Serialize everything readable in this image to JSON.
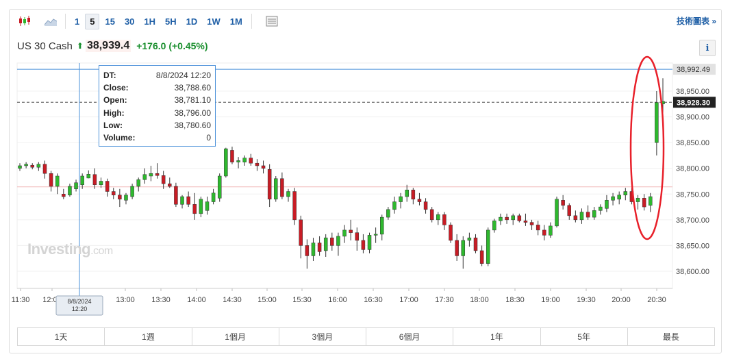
{
  "toolbar": {
    "intervals": [
      "1",
      "5",
      "15",
      "30",
      "1H",
      "5H",
      "1D",
      "1W",
      "1M"
    ],
    "active_interval": "5",
    "tech_chart_link": "技術圖表 »"
  },
  "quote": {
    "name": "US 30 Cash",
    "price": "38,939.4",
    "change": "+176.0 (+0.45%)"
  },
  "info_label": "i",
  "watermark": {
    "brand": "Investing",
    "suffix": ".com"
  },
  "tooltip": {
    "rows": [
      {
        "key": "DT:",
        "value": "8/8/2024 12:20"
      },
      {
        "key": "Close:",
        "value": "38,788.60"
      },
      {
        "key": "Open:",
        "value": "38,781.10"
      },
      {
        "key": "High:",
        "value": "38,796.00"
      },
      {
        "key": "Low:",
        "value": "38,780.60"
      },
      {
        "key": "Volume:",
        "value": "0"
      }
    ]
  },
  "ranges": [
    "1天",
    "1週",
    "1個月",
    "3個月",
    "6個月",
    "1年",
    "5年",
    "最長"
  ],
  "colors": {
    "up": "#2eb82e",
    "down": "#c81c25",
    "crosshair": "#4a90d9",
    "annotation": "#e8202a"
  },
  "chart_data": {
    "type": "candlestick",
    "y_ticks": [
      38600,
      38650,
      38700,
      38750,
      38800,
      38850,
      38900,
      38950
    ],
    "y_tick_labels": [
      "38,600.00",
      "38,650.00",
      "38,700.00",
      "38,750.00",
      "38,800.00",
      "38,850.00",
      "38,900.00",
      "38,950.00"
    ],
    "ylim": [
      38580,
      39010
    ],
    "x_tick_labels": [
      "11:30",
      "12:00",
      "13:00",
      "13:30",
      "14:00",
      "14:30",
      "15:00",
      "15:30",
      "16:00",
      "16:30",
      "17:00",
      "17:30",
      "18:00",
      "18:30",
      "19:00",
      "19:30",
      "20:00",
      "20:30"
    ],
    "crosshair_label": "8/8/2024\n12:20",
    "high_line": {
      "value": 38992.49,
      "label": "38,992.49"
    },
    "last_line": {
      "value": 38928.3,
      "label": "38,928.30"
    },
    "prev_close_line": {
      "value": 38764
    },
    "candles": [
      [
        38800,
        38810,
        38795,
        38805
      ],
      [
        38805,
        38812,
        38800,
        38808
      ],
      [
        38806,
        38810,
        38798,
        38802
      ],
      [
        38802,
        38812,
        38795,
        38808
      ],
      [
        38808,
        38815,
        38780,
        38790
      ],
      [
        38790,
        38795,
        38755,
        38765
      ],
      [
        38765,
        38790,
        38750,
        38785
      ],
      [
        38750,
        38760,
        38740,
        38745
      ],
      [
        38748,
        38770,
        38745,
        38765
      ],
      [
        38760,
        38778,
        38755,
        38772
      ],
      [
        38768,
        38790,
        38760,
        38785
      ],
      [
        38781.1,
        38796,
        38780.6,
        38788.6
      ],
      [
        38788,
        38800,
        38760,
        38768
      ],
      [
        38768,
        38782,
        38762,
        38775
      ],
      [
        38775,
        38780,
        38745,
        38755
      ],
      [
        38755,
        38762,
        38740,
        38748
      ],
      [
        38748,
        38760,
        38725,
        38740
      ],
      [
        38738,
        38752,
        38730,
        38748
      ],
      [
        38745,
        38770,
        38740,
        38765
      ],
      [
        38765,
        38782,
        38755,
        38778
      ],
      [
        38778,
        38800,
        38770,
        38788
      ],
      [
        38785,
        38805,
        38775,
        38790
      ],
      [
        38790,
        38810,
        38780,
        38786
      ],
      [
        38786,
        38795,
        38760,
        38770
      ],
      [
        38770,
        38782,
        38762,
        38765
      ],
      [
        38765,
        38772,
        38725,
        38730
      ],
      [
        38730,
        38748,
        38722,
        38745
      ],
      [
        38745,
        38755,
        38725,
        38730
      ],
      [
        38730,
        38752,
        38700,
        38712
      ],
      [
        38712,
        38745,
        38705,
        38740
      ],
      [
        38718,
        38745,
        38710,
        38735
      ],
      [
        38735,
        38760,
        38730,
        38752
      ],
      [
        38742,
        38790,
        38735,
        38785
      ],
      [
        38785,
        38840,
        38782,
        38838
      ],
      [
        38835,
        38842,
        38808,
        38812
      ],
      [
        38812,
        38822,
        38800,
        38815
      ],
      [
        38812,
        38825,
        38805,
        38820
      ],
      [
        38820,
        38828,
        38805,
        38810
      ],
      [
        38810,
        38818,
        38795,
        38805
      ],
      [
        38805,
        38815,
        38790,
        38800
      ],
      [
        38798,
        38808,
        38725,
        38740
      ],
      [
        38740,
        38785,
        38735,
        38780
      ],
      [
        38780,
        38792,
        38740,
        38745
      ],
      [
        38745,
        38760,
        38735,
        38755
      ],
      [
        38755,
        38762,
        38690,
        38700
      ],
      [
        38700,
        38708,
        38625,
        38650
      ],
      [
        38650,
        38662,
        38605,
        38630
      ],
      [
        38630,
        38665,
        38620,
        38655
      ],
      [
        38655,
        38668,
        38630,
        38638
      ],
      [
        38640,
        38672,
        38628,
        38665
      ],
      [
        38665,
        38675,
        38640,
        38650
      ],
      [
        38650,
        38675,
        38630,
        38668
      ],
      [
        38668,
        38690,
        38655,
        38680
      ],
      [
        38680,
        38700,
        38660,
        38675
      ],
      [
        38675,
        38685,
        38640,
        38660
      ],
      [
        38660,
        38672,
        38635,
        38642
      ],
      [
        38642,
        38675,
        38635,
        38670
      ],
      [
        38670,
        38685,
        38655,
        38672
      ],
      [
        38672,
        38710,
        38660,
        38705
      ],
      [
        38705,
        38725,
        38700,
        38720
      ],
      [
        38720,
        38745,
        38712,
        38735
      ],
      [
        38735,
        38752,
        38722,
        38745
      ],
      [
        38745,
        38768,
        38735,
        38758
      ],
      [
        38758,
        38762,
        38730,
        38740
      ],
      [
        38740,
        38752,
        38728,
        38735
      ],
      [
        38735,
        38742,
        38712,
        38720
      ],
      [
        38720,
        38725,
        38695,
        38700
      ],
      [
        38700,
        38715,
        38690,
        38710
      ],
      [
        38710,
        38715,
        38680,
        38690
      ],
      [
        38690,
        38695,
        38655,
        38660
      ],
      [
        38660,
        38672,
        38620,
        38630
      ],
      [
        38630,
        38668,
        38605,
        38660
      ],
      [
        38660,
        38675,
        38648,
        38665
      ],
      [
        38665,
        38672,
        38635,
        38640
      ],
      [
        38640,
        38650,
        38610,
        38615
      ],
      [
        38615,
        38685,
        38610,
        38680
      ],
      [
        38680,
        38702,
        38675,
        38698
      ],
      [
        38698,
        38712,
        38690,
        38705
      ],
      [
        38705,
        38712,
        38692,
        38700
      ],
      [
        38700,
        38712,
        38690,
        38708
      ],
      [
        38708,
        38712,
        38695,
        38698
      ],
      [
        38698,
        38712,
        38688,
        38695
      ],
      [
        38695,
        38700,
        38680,
        38690
      ],
      [
        38690,
        38698,
        38670,
        38680
      ],
      [
        38680,
        38690,
        38660,
        38670
      ],
      [
        38670,
        38695,
        38665,
        38688
      ],
      [
        38688,
        38745,
        38685,
        38740
      ],
      [
        38738,
        38748,
        38720,
        38728
      ],
      [
        38728,
        38732,
        38700,
        38708
      ],
      [
        38708,
        38718,
        38695,
        38700
      ],
      [
        38700,
        38722,
        38692,
        38715
      ],
      [
        38715,
        38728,
        38700,
        38705
      ],
      [
        38705,
        38725,
        38700,
        38718
      ],
      [
        38718,
        38730,
        38710,
        38725
      ],
      [
        38722,
        38748,
        38715,
        38738
      ],
      [
        38738,
        38752,
        38728,
        38745
      ],
      [
        38740,
        38755,
        38730,
        38748
      ],
      [
        38748,
        38762,
        38738,
        38755
      ],
      [
        38755,
        38762,
        38730,
        38735
      ],
      [
        38735,
        38748,
        38720,
        38742
      ],
      [
        38742,
        38750,
        38718,
        38725
      ],
      [
        38728,
        38752,
        38715,
        38745
      ],
      [
        38850,
        38950,
        38825,
        38928
      ],
      [
        38925,
        38975,
        38905,
        38930
      ]
    ]
  }
}
